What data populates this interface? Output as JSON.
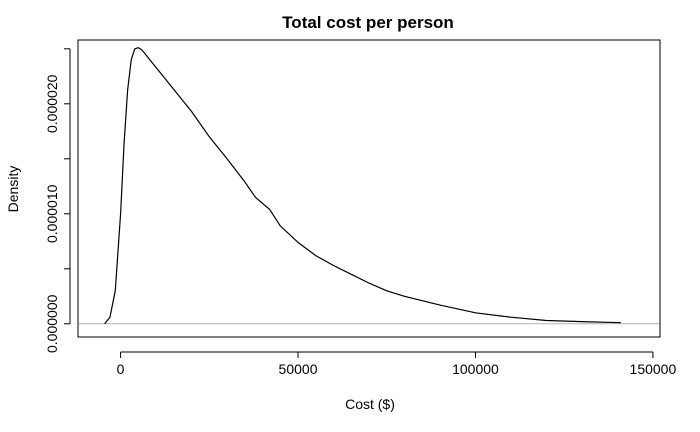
{
  "chart_data": {
    "type": "line",
    "title": "Total cost per person",
    "xlabel": "Cost ($)",
    "ylabel": "Density",
    "xlim": [
      -12000,
      152000
    ],
    "ylim": [
      -1.2e-06,
      2.58e-05
    ],
    "x_ticks": [
      0,
      50000,
      100000,
      150000
    ],
    "x_tick_labels": [
      "0",
      "50000",
      "100000",
      "150000"
    ],
    "y_ticks": [
      0,
      5e-06,
      1e-05,
      1.5e-05,
      2e-05,
      2.5e-05
    ],
    "y_tick_labels": [
      "0.000000",
      "",
      "0.000010",
      "",
      "0.000020",
      ""
    ],
    "grid": false,
    "baseline": 0,
    "baseline_color": "#b0b0b0",
    "line_color": "#000000",
    "series": [
      {
        "x": [
          -4500,
          -3000,
          -1500,
          0,
          1000,
          2000,
          3000,
          4000,
          5000,
          6000,
          7000,
          8000,
          10000,
          12000,
          15000,
          20000,
          25000,
          30000,
          35000,
          38000,
          42000,
          45000,
          50000,
          55000,
          60000,
          65000,
          70000,
          75000,
          80000,
          90000,
          100000,
          110000,
          120000,
          130000,
          141000
        ],
        "y": [
          0,
          6e-07,
          3e-06,
          1e-05,
          1.65e-05,
          2.13e-05,
          2.4e-05,
          2.5e-05,
          2.51e-05,
          2.49e-05,
          2.45e-05,
          2.41e-05,
          2.33e-05,
          2.25e-05,
          2.13e-05,
          1.93e-05,
          1.7e-05,
          1.5e-05,
          1.29e-05,
          1.15e-05,
          1.04e-05,
          8.9e-06,
          7.4e-06,
          6.2e-06,
          5.3e-06,
          4.5e-06,
          3.7e-06,
          3e-06,
          2.5e-06,
          1.7e-06,
          1e-06,
          6e-07,
          3e-07,
          2e-07,
          1e-07
        ]
      }
    ]
  }
}
